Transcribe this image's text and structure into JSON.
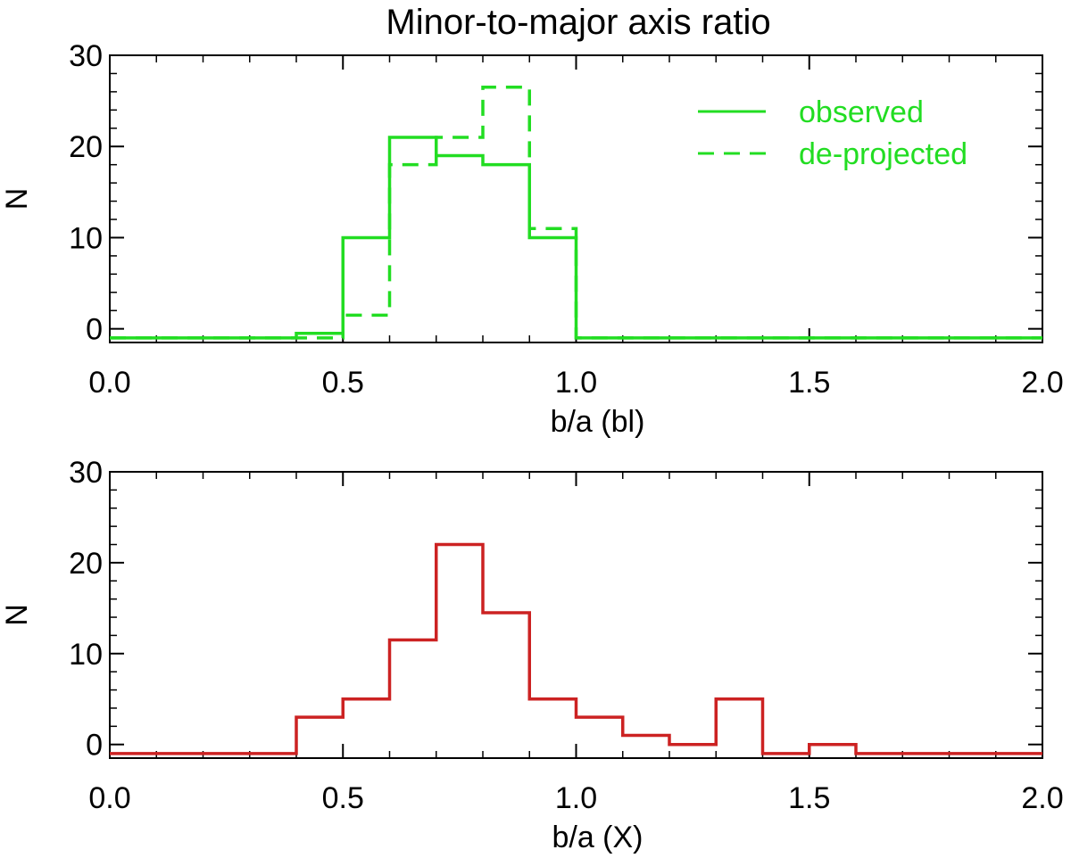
{
  "title": "Minor-to-major axis ratio",
  "chart_data": [
    {
      "type": "histogram-step",
      "xlabel": "b/a  (bl)",
      "ylabel": "N",
      "xlim": [
        0.0,
        2.0
      ],
      "ylim": [
        -1.5,
        30
      ],
      "xticks": [
        "0.0",
        "0.5",
        "1.0",
        "1.5",
        "2.0"
      ],
      "xtick_values": [
        0.0,
        0.5,
        1.0,
        1.5,
        2.0
      ],
      "yticks": [
        "0",
        "10",
        "20",
        "30"
      ],
      "ytick_values": [
        0,
        10,
        20,
        30
      ],
      "bin_edges": [
        0.0,
        0.1,
        0.2,
        0.3,
        0.4,
        0.5,
        0.6,
        0.7,
        0.8,
        0.9,
        1.0,
        1.1,
        1.2,
        1.3,
        1.4,
        1.5,
        1.6,
        1.7,
        1.8,
        1.9,
        2.0
      ],
      "legend_position": "top-right",
      "series": [
        {
          "name": "observed",
          "style": "solid",
          "color": "#22dd22",
          "values": [
            -1,
            -1,
            -1,
            -1,
            -0.5,
            10,
            21,
            19,
            18,
            10,
            -1,
            -1,
            -1,
            -1,
            -1,
            -1,
            -1,
            -1,
            -1,
            -1
          ]
        },
        {
          "name": "de-projected",
          "style": "dashed",
          "color": "#22dd22",
          "values": [
            -1,
            -1,
            -1,
            -1,
            -1,
            1.5,
            18,
            21,
            26.5,
            11,
            -1,
            -1,
            -1,
            -1,
            -1,
            -1,
            -1,
            -1,
            -1,
            -1
          ]
        }
      ]
    },
    {
      "type": "histogram-step",
      "xlabel": "b/a  (X)",
      "ylabel": "N",
      "xlim": [
        0.0,
        2.0
      ],
      "ylim": [
        -1.5,
        30
      ],
      "xticks": [
        "0.0",
        "0.5",
        "1.0",
        "1.5",
        "2.0"
      ],
      "xtick_values": [
        0.0,
        0.5,
        1.0,
        1.5,
        2.0
      ],
      "yticks": [
        "0",
        "10",
        "20",
        "30"
      ],
      "ytick_values": [
        0,
        10,
        20,
        30
      ],
      "bin_edges": [
        0.0,
        0.1,
        0.2,
        0.3,
        0.4,
        0.5,
        0.6,
        0.7,
        0.8,
        0.9,
        1.0,
        1.1,
        1.2,
        1.3,
        1.4,
        1.5,
        1.6,
        1.7,
        1.8,
        1.9,
        2.0
      ],
      "series": [
        {
          "style": "solid",
          "color": "#cc2222",
          "values": [
            -1,
            -1,
            -1,
            -1,
            3,
            5,
            11.5,
            22,
            14.5,
            5,
            3,
            1,
            0,
            5,
            -1,
            0,
            -1,
            -1,
            -1,
            -1
          ]
        }
      ]
    }
  ]
}
